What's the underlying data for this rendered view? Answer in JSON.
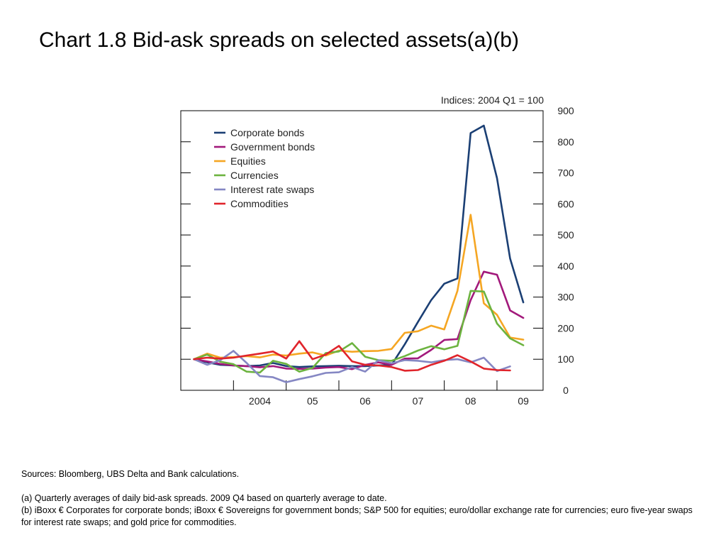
{
  "title": "Chart 1.8  Bid-ask spreads on selected assets(a)(b)",
  "footnotes": {
    "sources": "Sources:  Bloomberg, UBS Delta and Bank calculations.",
    "a": "(a)  Quarterly averages of daily bid-ask spreads.  2009 Q4 based on quarterly average to date.",
    "b": "(b)  iBoxx € Corporates for corporate bonds;  iBoxx € Sovereigns for government bonds;  S&P 500 for equities;  euro/dollar exchange rate for currencies;  euro five-year swaps for interest rate swaps;  and gold price for commodities."
  },
  "chart_data": {
    "type": "line",
    "unit_label": "Indices:  2004 Q1 = 100",
    "y_axis_position": "right",
    "ylim": [
      0,
      900
    ],
    "y_ticks": [
      0,
      100,
      200,
      300,
      400,
      500,
      600,
      700,
      800,
      900
    ],
    "x_tick_labels": [
      "2004",
      "05",
      "06",
      "07",
      "08",
      "09"
    ],
    "x_start": "2003 Q1",
    "x_end": "2009 Q4",
    "legend_position": "top-left",
    "grid": false,
    "series": [
      {
        "name": "Corporate bonds",
        "color": "#1b3f74",
        "values": [
          [
            2003.25,
            100
          ],
          [
            2003.5,
            90
          ],
          [
            2003.75,
            82
          ],
          [
            2004.0,
            80
          ],
          [
            2004.25,
            78
          ],
          [
            2004.5,
            80
          ],
          [
            2004.75,
            88
          ],
          [
            2005.0,
            78
          ],
          [
            2005.25,
            75
          ],
          [
            2005.5,
            77
          ],
          [
            2005.75,
            78
          ],
          [
            2006.0,
            79
          ],
          [
            2006.25,
            78
          ],
          [
            2006.5,
            78
          ],
          [
            2006.75,
            80
          ],
          [
            2007.0,
            82
          ],
          [
            2007.25,
            148
          ],
          [
            2007.5,
            220
          ],
          [
            2007.75,
            290
          ],
          [
            2008.0,
            343
          ],
          [
            2008.25,
            360
          ],
          [
            2008.5,
            828
          ],
          [
            2008.75,
            852
          ],
          [
            2009.0,
            683
          ],
          [
            2009.25,
            424
          ],
          [
            2009.5,
            283
          ]
        ]
      },
      {
        "name": "Government bonds",
        "color": "#a2197b",
        "values": [
          [
            2003.25,
            100
          ],
          [
            2003.5,
            93
          ],
          [
            2003.75,
            85
          ],
          [
            2004.0,
            80
          ],
          [
            2004.25,
            78
          ],
          [
            2004.5,
            74
          ],
          [
            2004.75,
            78
          ],
          [
            2005.0,
            70
          ],
          [
            2005.25,
            69
          ],
          [
            2005.5,
            70
          ],
          [
            2005.75,
            73
          ],
          [
            2006.0,
            75
          ],
          [
            2006.25,
            68
          ],
          [
            2006.5,
            82
          ],
          [
            2006.75,
            90
          ],
          [
            2007.0,
            82
          ],
          [
            2007.25,
            102
          ],
          [
            2007.5,
            103
          ],
          [
            2007.75,
            130
          ],
          [
            2008.0,
            162
          ],
          [
            2008.25,
            165
          ],
          [
            2008.5,
            290
          ],
          [
            2008.75,
            382
          ],
          [
            2009.0,
            372
          ],
          [
            2009.25,
            257
          ],
          [
            2009.5,
            233
          ]
        ]
      },
      {
        "name": "Equities",
        "color": "#f5a623",
        "values": [
          [
            2003.25,
            100
          ],
          [
            2003.5,
            118
          ],
          [
            2003.75,
            105
          ],
          [
            2004.0,
            107
          ],
          [
            2004.25,
            110
          ],
          [
            2004.5,
            106
          ],
          [
            2004.75,
            115
          ],
          [
            2005.0,
            112
          ],
          [
            2005.25,
            118
          ],
          [
            2005.5,
            122
          ],
          [
            2005.75,
            112
          ],
          [
            2006.0,
            128
          ],
          [
            2006.25,
            124
          ],
          [
            2006.5,
            126
          ],
          [
            2006.75,
            127
          ],
          [
            2007.0,
            133
          ],
          [
            2007.25,
            185
          ],
          [
            2007.5,
            190
          ],
          [
            2007.75,
            208
          ],
          [
            2008.0,
            196
          ],
          [
            2008.25,
            320
          ],
          [
            2008.5,
            565
          ],
          [
            2008.75,
            280
          ],
          [
            2009.0,
            243
          ],
          [
            2009.25,
            170
          ],
          [
            2009.5,
            163
          ]
        ]
      },
      {
        "name": "Currencies",
        "color": "#6cb33f",
        "values": [
          [
            2003.25,
            100
          ],
          [
            2003.5,
            115
          ],
          [
            2003.75,
            92
          ],
          [
            2004.0,
            84
          ],
          [
            2004.25,
            60
          ],
          [
            2004.5,
            57
          ],
          [
            2004.75,
            95
          ],
          [
            2005.0,
            85
          ],
          [
            2005.25,
            60
          ],
          [
            2005.5,
            72
          ],
          [
            2005.75,
            120
          ],
          [
            2006.0,
            125
          ],
          [
            2006.25,
            152
          ],
          [
            2006.5,
            108
          ],
          [
            2006.75,
            97
          ],
          [
            2007.0,
            95
          ],
          [
            2007.25,
            110
          ],
          [
            2007.5,
            128
          ],
          [
            2007.75,
            142
          ],
          [
            2008.0,
            132
          ],
          [
            2008.25,
            143
          ],
          [
            2008.5,
            320
          ],
          [
            2008.75,
            318
          ],
          [
            2009.0,
            215
          ],
          [
            2009.25,
            167
          ],
          [
            2009.5,
            145
          ]
        ]
      },
      {
        "name": "Interest rate swaps",
        "color": "#8587c3",
        "values": [
          [
            2003.25,
            100
          ],
          [
            2003.5,
            82
          ],
          [
            2003.75,
            97
          ],
          [
            2004.0,
            127
          ],
          [
            2004.25,
            88
          ],
          [
            2004.5,
            46
          ],
          [
            2004.75,
            42
          ],
          [
            2005.0,
            26
          ],
          [
            2005.25,
            36
          ],
          [
            2005.5,
            45
          ],
          [
            2005.75,
            56
          ],
          [
            2006.0,
            58
          ],
          [
            2006.25,
            75
          ],
          [
            2006.5,
            60
          ],
          [
            2006.75,
            97
          ],
          [
            2007.0,
            87
          ],
          [
            2007.25,
            97
          ],
          [
            2007.5,
            95
          ],
          [
            2007.75,
            90
          ],
          [
            2008.0,
            97
          ],
          [
            2008.25,
            100
          ],
          [
            2008.5,
            90
          ],
          [
            2008.75,
            105
          ],
          [
            2009.0,
            62
          ],
          [
            2009.25,
            77
          ]
        ]
      },
      {
        "name": "Commodities",
        "color": "#e0242b",
        "values": [
          [
            2003.25,
            100
          ],
          [
            2003.5,
            105
          ],
          [
            2003.75,
            102
          ],
          [
            2004.0,
            105
          ],
          [
            2004.25,
            112
          ],
          [
            2004.5,
            118
          ],
          [
            2004.75,
            125
          ],
          [
            2005.0,
            102
          ],
          [
            2005.25,
            158
          ],
          [
            2005.5,
            100
          ],
          [
            2005.75,
            115
          ],
          [
            2006.0,
            143
          ],
          [
            2006.25,
            93
          ],
          [
            2006.5,
            82
          ],
          [
            2006.75,
            80
          ],
          [
            2007.0,
            75
          ],
          [
            2007.25,
            63
          ],
          [
            2007.5,
            65
          ],
          [
            2007.75,
            82
          ],
          [
            2008.0,
            95
          ],
          [
            2008.25,
            113
          ],
          [
            2008.5,
            93
          ],
          [
            2008.75,
            70
          ],
          [
            2009.0,
            65
          ],
          [
            2009.25,
            64
          ]
        ]
      }
    ]
  }
}
